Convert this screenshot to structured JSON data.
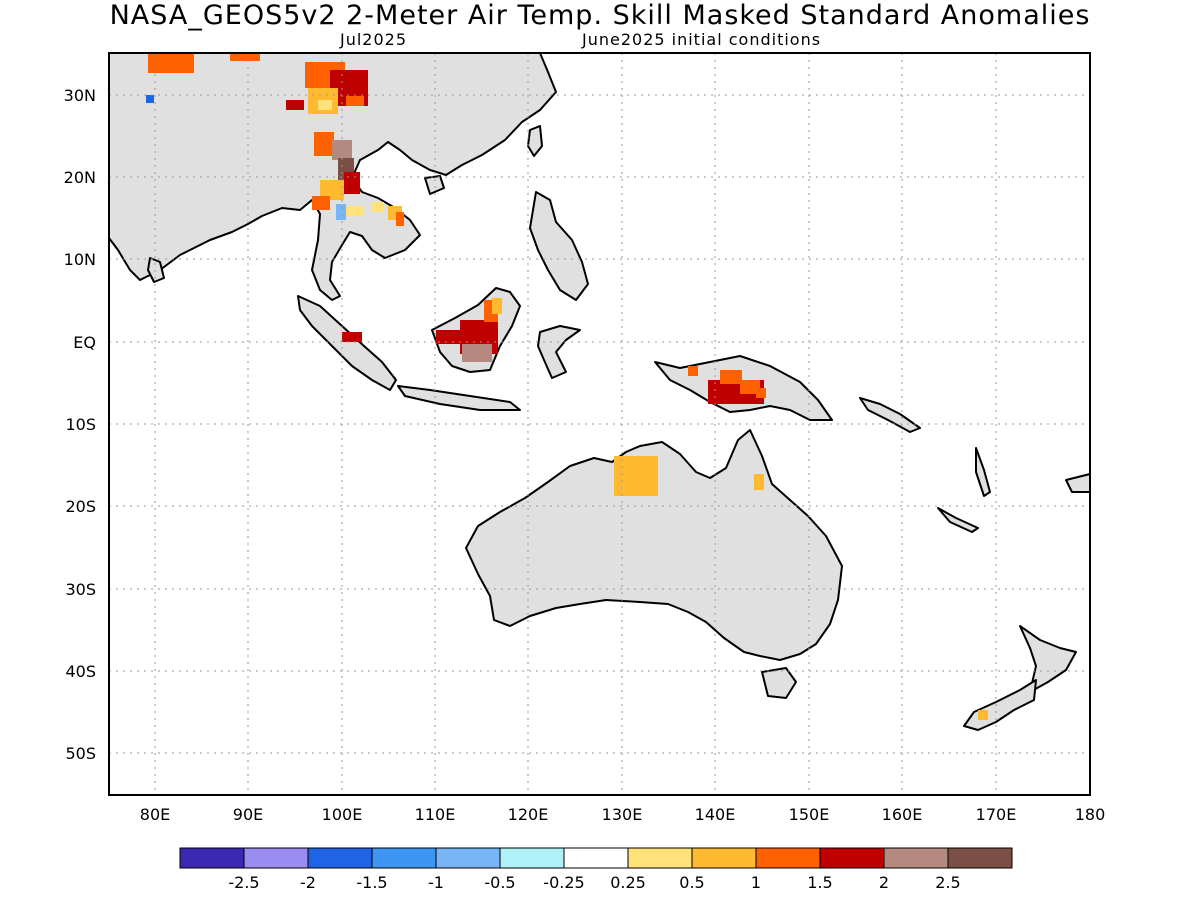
{
  "header": {
    "title": "NASA_GEOS5v2 2-Meter Air Temp. Skill Masked Standard Anomalies",
    "valid_month": "Jul2025",
    "init_conditions": "June2025 initial conditions"
  },
  "map": {
    "lon_range": [
      75,
      180
    ],
    "lat_range": [
      -55,
      35
    ],
    "lon_ticks": [
      "80E",
      "90E",
      "100E",
      "110E",
      "120E",
      "130E",
      "140E",
      "150E",
      "160E",
      "170E",
      "180"
    ],
    "lat_ticks": [
      "30N",
      "20N",
      "10N",
      "EQ",
      "10S",
      "20S",
      "30S",
      "40S",
      "50S"
    ],
    "land_color": "#e0e0e0",
    "coast_color": "#000000"
  },
  "colorbar": {
    "colors": [
      "#3b28b2",
      "#9b8cf2",
      "#1f64e6",
      "#3d96f2",
      "#78b4f6",
      "#b0f0f8",
      "#ffffff",
      "#ffe27a",
      "#ffba32",
      "#ff6000",
      "#c00000",
      "#b48a80",
      "#7a5046"
    ],
    "labels": [
      "-2.5",
      "-2",
      "-1.5",
      "-1",
      "-0.5",
      "-0.25",
      "0.25",
      "0.5",
      "1",
      "1.5",
      "2",
      "2.5"
    ]
  }
}
